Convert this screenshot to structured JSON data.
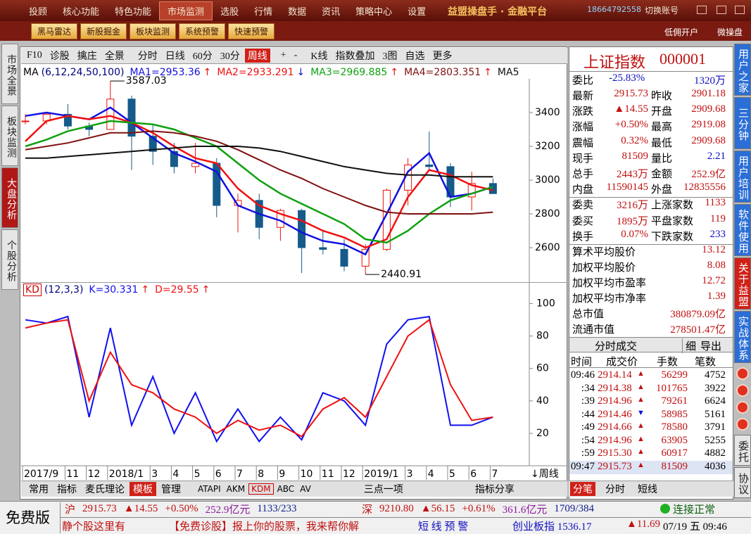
{
  "menu": {
    "items": [
      "投顾",
      "核心功能",
      "特色功能",
      "市场监测",
      "选股",
      "行情",
      "数据",
      "资讯",
      "策略中心",
      "设置"
    ],
    "active": 3,
    "brand": "益盟操盘手 · 金融平台",
    "phone": "18664792558",
    "account": "切换账号"
  },
  "toolbar": {
    "buttons": [
      "黑马雷达",
      "新股掘金",
      "板块监测",
      "系统预警",
      "快速预警"
    ],
    "right": [
      "低佣开户",
      "微操盘"
    ]
  },
  "left_tabs": {
    "items": [
      "市场全景",
      "板块监测",
      "大盘分析",
      "个股分析"
    ],
    "active": 2
  },
  "chart_toolbar": {
    "items": [
      "F10",
      "诊股",
      "擒庄",
      "全景",
      "分时",
      "日线",
      "60分",
      "30分",
      "周线",
      "+",
      "-",
      "K线",
      "指数叠加",
      "3图",
      "自选",
      "更多"
    ],
    "active": 8
  },
  "chart_data": [
    {
      "type": "candlestick",
      "indicator": "MA",
      "params": "(6,12,24,50,100)",
      "open": [
        3350,
        3350,
        3390,
        3320,
        3300,
        3480,
        3260,
        3170,
        3080,
        3100,
        2850,
        2880,
        2720,
        2820,
        2600,
        2590,
        2490,
        2590,
        2940,
        3090,
        3080,
        2900,
        2980
      ],
      "high": [
        3390,
        3400,
        3450,
        3340,
        3587.03,
        3500,
        3330,
        3220,
        3220,
        3130,
        2920,
        2920,
        2830,
        2830,
        2700,
        2650,
        2620,
        2950,
        3130,
        3288,
        3100,
        3050,
        3010
      ],
      "low": [
        3330,
        3330,
        3300,
        3260,
        3300,
        3060,
        3090,
        3040,
        3040,
        2780,
        2690,
        2650,
        2640,
        2450,
        2560,
        2460,
        2440.91,
        2580,
        2850,
        3060,
        2840,
        2820,
        2920
      ],
      "close": [
        3350,
        3390,
        3320,
        3300,
        3480,
        3260,
        3170,
        3080,
        3100,
        2850,
        2880,
        2720,
        2820,
        2600,
        2590,
        2490,
        2590,
        2940,
        3090,
        3080,
        2900,
        2980,
        2920
      ],
      "up_color": "#e8140c",
      "down_color": "#155a8a",
      "max_label": "3587.03",
      "min_label": "2440.91",
      "series": [
        {
          "name": "MA1=2953.36",
          "trend": "↑",
          "color": "#1010e0",
          "values": [
            3380,
            3400,
            3380,
            3360,
            3430,
            3340,
            3250,
            3160,
            3110,
            3050,
            2850,
            2800,
            2760,
            2690,
            2640,
            2620,
            2560,
            2800,
            3050,
            3160,
            2900,
            2920,
            2960
          ]
        },
        {
          "name": "MA2=2933.291",
          "trend": "↓",
          "color": "#f01010",
          "values": [
            3230,
            3350,
            3380,
            3360,
            3380,
            3340,
            3280,
            3200,
            3130,
            3100,
            2950,
            2850,
            2800,
            2760,
            2700,
            2660,
            2600,
            2650,
            2900,
            3060,
            3030,
            2970,
            2940
          ]
        },
        {
          "name": "MA3=2969.885",
          "trend": "↑",
          "color": "#10a010",
          "values": [
            3200,
            3240,
            3290,
            3320,
            3350,
            3340,
            3330,
            3300,
            3250,
            3200,
            3100,
            3000,
            2920,
            2860,
            2800,
            2740,
            2650,
            2630,
            2700,
            2800,
            2880,
            2920,
            2960
          ]
        },
        {
          "name": "MA4=2803.351",
          "trend": "↑",
          "color": "#801010",
          "values": [
            3180,
            3200,
            3220,
            3250,
            3280,
            3280,
            3290,
            3280,
            3260,
            3230,
            3180,
            3120,
            3060,
            3010,
            2950,
            2900,
            2850,
            2810,
            2800,
            2800,
            2800,
            2800,
            2810
          ]
        },
        {
          "name": "MA5",
          "color": "#101010",
          "values": [
            3130,
            3130,
            3140,
            3150,
            3160,
            3170,
            3180,
            3190,
            3200,
            3200,
            3200,
            3190,
            3170,
            3140,
            3110,
            3080,
            3060,
            3040,
            3030,
            3030,
            3020,
            3020,
            3020
          ]
        }
      ],
      "ylim": [
        2400,
        3600
      ],
      "yticks": [
        2600,
        2800,
        3000,
        3200,
        3400
      ],
      "grid": false
    },
    {
      "type": "line",
      "indicator": "KD",
      "params": "(12,3,3)",
      "categories": [
        "2017/9",
        null,
        "11",
        "12",
        "2018/1",
        null,
        "3",
        "4",
        "5",
        "6",
        "7",
        "8",
        "9",
        "10",
        "11",
        "12",
        "2019/1",
        null,
        "3",
        "4",
        "5",
        "6",
        "7"
      ],
      "period": "↓周线",
      "series": [
        {
          "name": "K=30.331",
          "trend": "↑",
          "color": "#1010f0",
          "values": [
            90,
            88,
            92,
            30,
            85,
            25,
            55,
            20,
            45,
            15,
            35,
            15,
            30,
            16,
            45,
            40,
            25,
            75,
            90,
            92,
            25,
            25,
            30
          ]
        },
        {
          "name": "D=29.55",
          "trend": "↑",
          "color": "#f01010",
          "values": [
            85,
            88,
            90,
            40,
            70,
            50,
            45,
            35,
            30,
            20,
            28,
            22,
            25,
            18,
            35,
            42,
            30,
            55,
            80,
            90,
            50,
            28,
            30
          ]
        }
      ],
      "ylim": [
        0,
        105
      ],
      "yticks": [
        20,
        40,
        60,
        80,
        100
      ],
      "grid": false
    }
  ],
  "bottom_tabs": {
    "items": [
      "常用",
      "指标",
      "麦氏理论",
      "模板",
      "管理"
    ],
    "active": 3,
    "indicators": [
      "ATAPI",
      "AKM",
      "KDM",
      "ABC",
      "AV"
    ],
    "active_indicator": 2,
    "center": "三点一项",
    "share": "指标分享"
  },
  "quote": {
    "name": "上证指数",
    "code": "000001",
    "ratio_label": "委比",
    "ratio": "-25.83%",
    "ratio_vol": "1320万",
    "rows": [
      [
        "最新",
        "2915.73",
        "昨收",
        "2901.18"
      ],
      [
        "涨跌",
        "▲14.55",
        "开盘",
        "2909.68"
      ],
      [
        "涨幅",
        "+0.50%",
        "最高",
        "2919.08"
      ],
      [
        "震幅",
        "0.32%",
        "最低",
        "2909.68"
      ],
      [
        "现手",
        "81509",
        "量比",
        "2.21"
      ],
      [
        "总手",
        "2443万",
        "金额",
        "252.9亿"
      ],
      [
        "内盘",
        "11590145",
        "外盘",
        "12835556"
      ],
      [
        "委卖",
        "3216万",
        "上涨家数",
        "1133"
      ],
      [
        "委买",
        "1895万",
        "平盘家数",
        "119"
      ],
      [
        "换手",
        "0.07%",
        "下跌家数",
        "233"
      ]
    ],
    "stats": [
      [
        "算术平均股价",
        "13.12"
      ],
      [
        "加权平均股价",
        "8.08"
      ],
      [
        "加权平均市盈率",
        "12.72"
      ],
      [
        "加权平均市净率",
        "1.39"
      ],
      [
        "总市值",
        "380879.09亿"
      ],
      [
        "流通市值",
        "278501.47亿"
      ]
    ]
  },
  "trades": {
    "title": "分时成交",
    "detail": "细",
    "export": "导出",
    "columns": [
      "时间",
      "成交价",
      "手数",
      "笔数"
    ],
    "rows": [
      [
        "09:46",
        "2914.14",
        "▲",
        "56299",
        "4752"
      ],
      [
        ":34",
        "2914.38",
        "▲",
        "101765",
        "3922"
      ],
      [
        ":39",
        "2914.96",
        "▲",
        "79261",
        "6624"
      ],
      [
        ":44",
        "2914.46",
        "▼",
        "58985",
        "5161"
      ],
      [
        ":49",
        "2914.66",
        "▲",
        "78580",
        "3791"
      ],
      [
        ":54",
        "2914.96",
        "▲",
        "63905",
        "5255"
      ],
      [
        ":59",
        "2915.30",
        "▲",
        "60917",
        "4882"
      ],
      [
        "09:47",
        "2915.73",
        "▲",
        "81509",
        "4036"
      ]
    ],
    "tabs": [
      "分笔",
      "分时",
      "短线"
    ]
  },
  "side_tabs": [
    "用户之家",
    "三分钟",
    "用户培训",
    "软件使用",
    "关于益盟",
    "实战体系",
    "委托",
    "协议"
  ],
  "status": {
    "edition": "免费版",
    "sh": [
      "沪",
      "2915.73",
      "▲14.55",
      "+0.50%",
      "252.9亿元",
      "1133/233"
    ],
    "sz": [
      "深",
      "9210.80",
      "▲56.15",
      "+0.61%",
      "361.6亿元",
      "1709/384"
    ],
    "connection": "连接正常",
    "ticker": [
      "静个股这里有",
      "【免费诊股】报上你的股票，我来帮你解",
      "短 线 预 警",
      "创业板指 1536.17",
      "▲11.69"
    ],
    "time": "07/19 五 09:46"
  }
}
